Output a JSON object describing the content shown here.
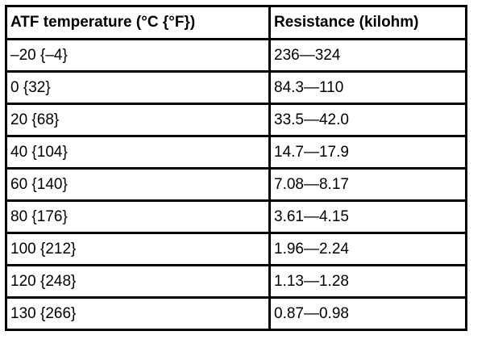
{
  "table": {
    "header": [
      "ATF temperature (°C {°F})",
      "Resistance (kilohm)"
    ],
    "rows": [
      [
        "–20 {–4}",
        "236—324"
      ],
      [
        "0 {32}",
        "84.3—110"
      ],
      [
        "20 {68}",
        "33.5—42.0"
      ],
      [
        "40 {104}",
        "14.7—17.9"
      ],
      [
        "60 {140}",
        "7.08—8.17"
      ],
      [
        "80 {176}",
        "3.61—4.15"
      ],
      [
        "100 {212}",
        "1.96—2.24"
      ],
      [
        "120 {248}",
        "1.13—1.28"
      ],
      [
        "130 {266}",
        "0.87—0.98"
      ]
    ]
  }
}
